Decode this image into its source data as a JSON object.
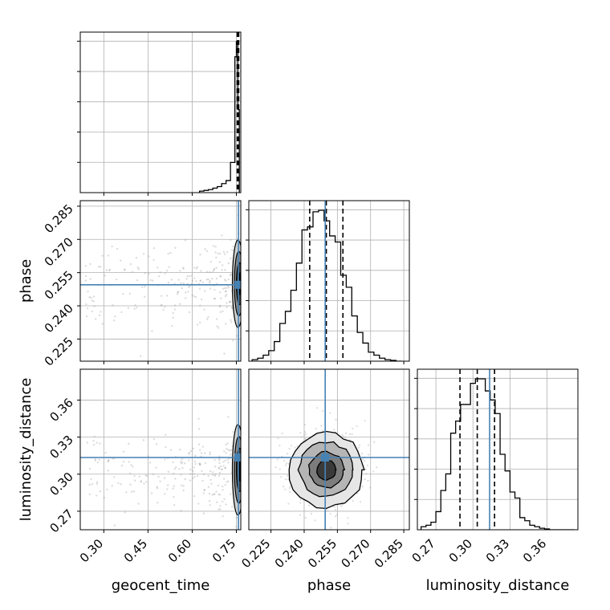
{
  "chart_data": {
    "type": "corner",
    "parameters": [
      "geocent_time",
      "phase",
      "luminosity_distance"
    ],
    "axis_labels": {
      "geocent_time": "geocent_time",
      "phase": "phase",
      "luminosity_distance": "luminosity_distance"
    },
    "ranges": {
      "geocent_time": [
        0.22,
        0.765
      ],
      "phase": [
        0.215,
        0.2875
      ],
      "luminosity_distance": [
        0.255,
        0.385
      ]
    },
    "ticks": {
      "geocent_time": [
        0.3,
        0.45,
        0.6,
        0.75
      ],
      "phase": [
        0.225,
        0.24,
        0.255,
        0.27,
        0.285
      ],
      "luminosity_distance": [
        0.27,
        0.3,
        0.33,
        0.36
      ]
    },
    "tick_labels": {
      "geocent_time": [
        "0.30",
        "0.45",
        "0.60",
        "0.75"
      ],
      "phase": [
        "0.225",
        "0.240",
        "0.255",
        "0.270",
        "0.285"
      ],
      "luminosity_distance": [
        "0.27",
        "0.30",
        "0.33",
        "0.36"
      ]
    },
    "truths": {
      "geocent_time": 0.757,
      "phase": 0.2495,
      "luminosity_distance": 0.3135
    },
    "quantiles": {
      "geocent_time": [
        0.753,
        0.756,
        0.758
      ],
      "phase": [
        0.2425,
        0.25,
        0.2575
      ],
      "luminosity_distance": [
        0.2895,
        0.3035,
        0.3175
      ]
    },
    "histograms": {
      "geocent_time": {
        "edges": [
          0.625,
          0.64,
          0.655,
          0.67,
          0.685,
          0.7,
          0.715,
          0.73,
          0.745,
          0.75,
          0.755,
          0.76
        ],
        "counts": [
          0.01,
          0.015,
          0.02,
          0.03,
          0.04,
          0.06,
          0.08,
          0.2,
          0.9,
          1.0,
          0.55
        ]
      },
      "phase": {
        "edges": [
          0.2165,
          0.219,
          0.2215,
          0.224,
          0.2265,
          0.229,
          0.2315,
          0.234,
          0.2365,
          0.239,
          0.2415,
          0.244,
          0.2465,
          0.249,
          0.2515,
          0.254,
          0.2565,
          0.259,
          0.2615,
          0.264,
          0.2665,
          0.269,
          0.2715,
          0.274,
          0.2765,
          0.279,
          0.2815,
          0.284
        ],
        "counts": [
          0.01,
          0.02,
          0.04,
          0.07,
          0.13,
          0.25,
          0.33,
          0.47,
          0.65,
          0.87,
          0.89,
          0.99,
          1.0,
          0.93,
          0.83,
          0.79,
          0.57,
          0.49,
          0.3,
          0.19,
          0.12,
          0.06,
          0.04,
          0.02,
          0.01,
          0.005,
          0.0
        ]
      },
      "luminosity_distance": {
        "edges": [
          0.258,
          0.262,
          0.266,
          0.27,
          0.274,
          0.278,
          0.282,
          0.286,
          0.29,
          0.294,
          0.298,
          0.302,
          0.306,
          0.31,
          0.314,
          0.318,
          0.322,
          0.326,
          0.33,
          0.334,
          0.338,
          0.342,
          0.346,
          0.35,
          0.354,
          0.358,
          0.362,
          0.382
        ],
        "counts": [
          0.02,
          0.03,
          0.05,
          0.12,
          0.26,
          0.37,
          0.64,
          0.72,
          0.83,
          0.83,
          0.97,
          1.0,
          1.0,
          0.92,
          0.86,
          0.77,
          0.5,
          0.39,
          0.25,
          0.21,
          0.08,
          0.06,
          0.03,
          0.02,
          0.01,
          0.005,
          0.0
        ]
      }
    },
    "grid": true
  }
}
